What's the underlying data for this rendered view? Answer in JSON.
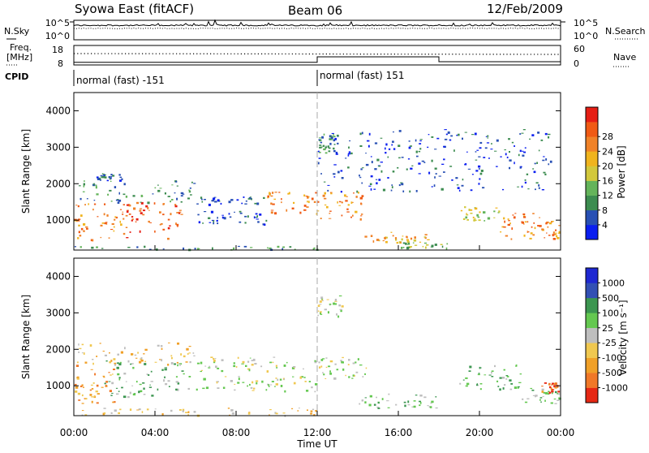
{
  "header": {
    "radar": "Syowa East (fitACF)",
    "beam": "Beam 06",
    "date": "12/Feb/2009"
  },
  "left_labels": {
    "nsky": "N.Sky",
    "freq_line1": "Freq.",
    "freq_line2": "[MHz]",
    "cpid": "CPID"
  },
  "right_labels": {
    "nsearch": "N.Search",
    "nave": "Nave"
  },
  "chart_data": [
    {
      "type": "line",
      "name": "noise",
      "y_left_ticks": [
        "10^5",
        "10^0"
      ],
      "y_right_ticks": [
        "10^5",
        "10^0"
      ]
    },
    {
      "type": "line",
      "name": "frequency",
      "y_left_ticks": [
        "18",
        "8"
      ],
      "y_right_ticks": [
        "60",
        "0"
      ],
      "nave_steps": [
        {
          "from": 0,
          "to": 12,
          "value": 8
        },
        {
          "from": 12,
          "to": 18,
          "value": 25
        },
        {
          "from": 18,
          "to": 24,
          "value": 10
        }
      ]
    },
    {
      "type": "table",
      "name": "cpid",
      "segments": [
        {
          "start": 0,
          "label": "normal (fast) -151"
        },
        {
          "start": 12,
          "label": "normal (fast) 151"
        }
      ]
    },
    {
      "type": "heatmap",
      "name": "power",
      "ylabel": "Slant Range [km]",
      "xlim": [
        0,
        24
      ],
      "ylim": [
        180,
        4500
      ],
      "y_ticks": [
        1000,
        2000,
        3000,
        4000
      ],
      "colorbar": {
        "label": "Power [dB]",
        "range": [
          0,
          32
        ],
        "ticks": [
          "4",
          "8",
          "12",
          "16",
          "20",
          "24",
          "28"
        ],
        "colors": [
          "#0a1ef0",
          "#2850b4",
          "#3c8c50",
          "#64b45a",
          "#d2c83c",
          "#f0b41e",
          "#f08228",
          "#f05a14",
          "#e61e14"
        ]
      },
      "blobs": [
        {
          "t": [
            0.0,
            2.5
          ],
          "r": [
            450,
            1500
          ],
          "level": 6
        },
        {
          "t": [
            2.5,
            5.5
          ],
          "r": [
            500,
            1500
          ],
          "level": 7
        },
        {
          "t": [
            0.2,
            6.0
          ],
          "r": [
            1500,
            2100
          ],
          "level": 2
        },
        {
          "t": [
            1.0,
            2.5
          ],
          "r": [
            2100,
            2300
          ],
          "level": 1
        },
        {
          "t": [
            6.0,
            9.5
          ],
          "r": [
            900,
            1300
          ],
          "level": 1
        },
        {
          "t": [
            6.0,
            9.5
          ],
          "r": [
            1450,
            1650
          ],
          "level": 1
        },
        {
          "t": [
            9.5,
            12.0
          ],
          "r": [
            1200,
            1800
          ],
          "level": 6
        },
        {
          "t": [
            0.0,
            12.0
          ],
          "r": [
            200,
            300
          ],
          "level": 2
        },
        {
          "t": [
            12.0,
            13.0
          ],
          "r": [
            2800,
            3400
          ],
          "level": 2
        },
        {
          "t": [
            12.0,
            14.2
          ],
          "r": [
            1050,
            1800
          ],
          "level": 6
        },
        {
          "t": [
            14.0,
            17.5
          ],
          "r": [
            400,
            700
          ],
          "level": 5
        },
        {
          "t": [
            16.0,
            18.5
          ],
          "r": [
            250,
            400
          ],
          "level": 3
        },
        {
          "t": [
            19.0,
            21.0
          ],
          "r": [
            1000,
            1400
          ],
          "level": 4
        },
        {
          "t": [
            21.0,
            23.0
          ],
          "r": [
            500,
            1200
          ],
          "level": 6
        },
        {
          "t": [
            23.0,
            24.0
          ],
          "r": [
            500,
            1000
          ],
          "level": 6
        },
        {
          "t": [
            12.0,
            23.5
          ],
          "r": [
            1800,
            3500
          ],
          "level": 1
        }
      ]
    },
    {
      "type": "heatmap",
      "name": "velocity",
      "ylabel": "Slant Range [km]",
      "xlabel": "Time UT",
      "xlim": [
        0,
        24
      ],
      "ylim": [
        180,
        4500
      ],
      "y_ticks": [
        1000,
        2000,
        3000,
        4000
      ],
      "x_ticks": [
        "00:00",
        "04:00",
        "08:00",
        "12:00",
        "16:00",
        "20:00",
        "00:00"
      ],
      "colorbar": {
        "label": "Velocity [m s⁻¹]",
        "ticks": [
          "1000",
          "500",
          "100",
          "25",
          "-25",
          "-100",
          "-500",
          "-1000"
        ],
        "colors": [
          "#1e28d2",
          "#3250b4",
          "#3c9650",
          "#64c850",
          "#bebebe",
          "#f0c850",
          "#f0a028",
          "#f07828",
          "#e62814"
        ]
      },
      "blobs": [
        {
          "t": [
            0.0,
            2.0
          ],
          "r": [
            500,
            1600
          ],
          "level": 6
        },
        {
          "t": [
            1.5,
            5.5
          ],
          "r": [
            700,
            1700
          ],
          "level": 3
        },
        {
          "t": [
            0.0,
            6.0
          ],
          "r": [
            1600,
            2200
          ],
          "level": 5
        },
        {
          "t": [
            5.5,
            12.0
          ],
          "r": [
            850,
            1300
          ],
          "level": 4
        },
        {
          "t": [
            6.0,
            12.0
          ],
          "r": [
            1400,
            1800
          ],
          "level": 4
        },
        {
          "t": [
            12.0,
            13.2
          ],
          "r": [
            2900,
            3500
          ],
          "level": 4
        },
        {
          "t": [
            12.0,
            14.5
          ],
          "r": [
            1200,
            1800
          ],
          "level": 4
        },
        {
          "t": [
            14.0,
            18.0
          ],
          "r": [
            400,
            800
          ],
          "level": 3
        },
        {
          "t": [
            19.0,
            22.0
          ],
          "r": [
            900,
            1600
          ],
          "level": 3
        },
        {
          "t": [
            22.0,
            24.0
          ],
          "r": [
            500,
            1000
          ],
          "level": 3
        },
        {
          "t": [
            23.0,
            24.0
          ],
          "r": [
            800,
            1100
          ],
          "level": 7
        },
        {
          "t": [
            0.0,
            12.0
          ],
          "r": [
            200,
            400
          ],
          "level": 5
        }
      ]
    }
  ]
}
